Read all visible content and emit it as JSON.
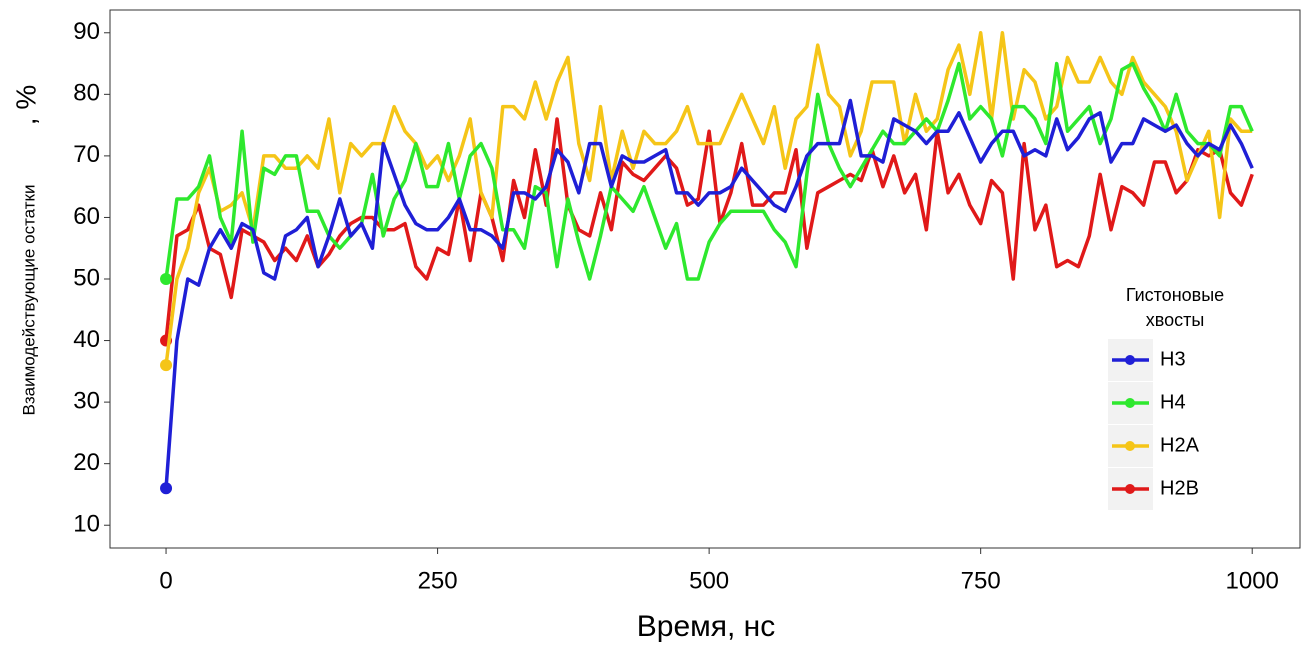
{
  "chart_data": {
    "type": "line",
    "x_label": "Время, нс",
    "y_label": "Взаимодействующие остатки",
    "y_label_unit": ", %",
    "legend_title": [
      "Гистоновые",
      "хвосты"
    ],
    "legend_position": "right",
    "grid": false,
    "xlim": [
      -51.6,
      1044
    ],
    "ylim": [
      6.3,
      93.7
    ],
    "xticks": [
      0,
      250,
      500,
      750,
      1000
    ],
    "yticks": [
      10,
      20,
      30,
      40,
      50,
      60,
      70,
      80,
      90
    ],
    "x": [
      0,
      10,
      20,
      30,
      40,
      50,
      60,
      70,
      80,
      90,
      100,
      110,
      120,
      130,
      140,
      150,
      160,
      170,
      180,
      190,
      200,
      210,
      220,
      230,
      240,
      250,
      260,
      270,
      280,
      290,
      300,
      310,
      320,
      330,
      340,
      350,
      360,
      370,
      380,
      390,
      400,
      410,
      420,
      430,
      440,
      450,
      460,
      470,
      480,
      490,
      500,
      510,
      520,
      530,
      540,
      550,
      560,
      570,
      580,
      590,
      600,
      610,
      620,
      630,
      640,
      650,
      660,
      670,
      680,
      690,
      700,
      710,
      720,
      730,
      740,
      750,
      760,
      770,
      780,
      790,
      800,
      810,
      820,
      830,
      840,
      850,
      860,
      870,
      880,
      890,
      900,
      910,
      920,
      930,
      940,
      950,
      960,
      970,
      980,
      990,
      1000
    ],
    "series": [
      {
        "name": "H3",
        "color": "#1f1fd6",
        "values": [
          16,
          40,
          50,
          49,
          55,
          58,
          55,
          59,
          58,
          51,
          50,
          57,
          58,
          60,
          52,
          57,
          63,
          57,
          59,
          55,
          72,
          67,
          62,
          59,
          58,
          58,
          60,
          63,
          58,
          58,
          57,
          55,
          64,
          64,
          63,
          65,
          71,
          69,
          64,
          72,
          72,
          65,
          70,
          69,
          69,
          70,
          71,
          64,
          64,
          62,
          64,
          64,
          65,
          68,
          66,
          64,
          62,
          61,
          65,
          70,
          72,
          72,
          72,
          79,
          70,
          70,
          69,
          76,
          75,
          74,
          72,
          74,
          74,
          77,
          73,
          69,
          72,
          74,
          74,
          70,
          71,
          70,
          76,
          71,
          73,
          76,
          77,
          69,
          72,
          72,
          76,
          75,
          74,
          75,
          72,
          70,
          72,
          71,
          75,
          72,
          68
        ]
      },
      {
        "name": "H4",
        "color": "#2ee82e",
        "values": [
          50,
          63,
          63,
          65,
          70,
          60,
          56,
          74,
          56,
          68,
          67,
          70,
          70,
          61,
          61,
          57,
          55,
          57,
          59,
          67,
          57,
          63,
          66,
          72,
          65,
          65,
          72,
          63,
          70,
          72,
          68,
          58,
          58,
          55,
          65,
          64,
          52,
          63,
          56,
          50,
          57,
          65,
          63,
          61,
          65,
          60,
          55,
          59,
          50,
          50,
          56,
          59,
          61,
          61,
          61,
          61,
          58,
          56,
          52,
          67,
          80,
          72,
          68,
          65,
          68,
          71,
          74,
          72,
          72,
          74,
          76,
          74,
          79,
          85,
          76,
          78,
          76,
          70,
          78,
          78,
          76,
          72,
          85,
          74,
          76,
          78,
          72,
          76,
          84,
          85,
          81,
          78,
          74,
          80,
          74,
          72,
          72,
          70,
          78,
          78,
          74
        ]
      },
      {
        "name": "H2A",
        "color": "#f5c518",
        "values": [
          36,
          50,
          55,
          64,
          68,
          61,
          62,
          64,
          58,
          70,
          70,
          68,
          68,
          70,
          68,
          76,
          64,
          72,
          70,
          72,
          72,
          78,
          74,
          72,
          68,
          70,
          66,
          70,
          76,
          64,
          60,
          78,
          78,
          76,
          82,
          76,
          82,
          86,
          72,
          66,
          78,
          66,
          74,
          68,
          74,
          72,
          72,
          74,
          78,
          72,
          72,
          72,
          76,
          80,
          76,
          72,
          78,
          68,
          76,
          78,
          88,
          80,
          78,
          70,
          74,
          82,
          82,
          82,
          72,
          80,
          74,
          76,
          84,
          88,
          80,
          90,
          76,
          90,
          76,
          84,
          82,
          76,
          78,
          86,
          82,
          82,
          86,
          82,
          80,
          86,
          82,
          80,
          78,
          74,
          66,
          70,
          74,
          60,
          76,
          74,
          74
        ]
      },
      {
        "name": "H2B",
        "color": "#e01919",
        "values": [
          40,
          57,
          58,
          62,
          55,
          54,
          47,
          58,
          57,
          56,
          53,
          55,
          53,
          57,
          52,
          54,
          57,
          59,
          60,
          60,
          58,
          58,
          59,
          52,
          50,
          55,
          54,
          63,
          53,
          64,
          60,
          53,
          66,
          60,
          71,
          62,
          76,
          62,
          58,
          57,
          64,
          58,
          69,
          67,
          66,
          68,
          70,
          68,
          62,
          63,
          74,
          59,
          64,
          72,
          62,
          62,
          64,
          64,
          71,
          55,
          64,
          65,
          66,
          67,
          66,
          71,
          65,
          70,
          64,
          67,
          58,
          74,
          64,
          67,
          62,
          59,
          66,
          64,
          50,
          72,
          58,
          62,
          52,
          53,
          52,
          57,
          67,
          58,
          65,
          64,
          62,
          69,
          69,
          64,
          66,
          71,
          70,
          71,
          64,
          62,
          67
        ]
      }
    ]
  }
}
